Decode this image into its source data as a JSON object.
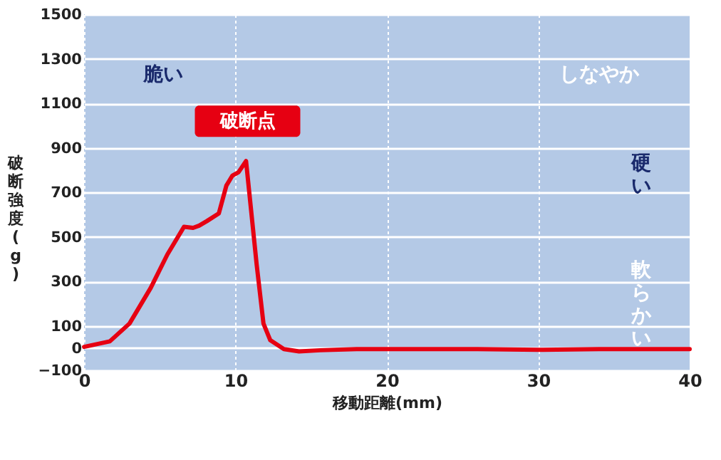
{
  "chart_data": {
    "type": "line",
    "xlabel": "移動距離(mm)",
    "ylabel": "破断強度(g)",
    "x": [
      0,
      1.7,
      3.0,
      4.4,
      5.5,
      6.6,
      7.2,
      7.6,
      8.1,
      8.9,
      9.4,
      9.8,
      10.2,
      10.7,
      11.4,
      11.85,
      12.3,
      13.2,
      14.2,
      15.6,
      18,
      22,
      26,
      30,
      34,
      38,
      40
    ],
    "series": [
      {
        "color": "#e60012",
        "values": [
          5,
          30,
          110,
          270,
          420,
          545,
          540,
          550,
          570,
          605,
          730,
          775,
          790,
          840,
          375,
          110,
          35,
          -5,
          -15,
          -10,
          -5,
          -5,
          -5,
          -8,
          -5,
          -5,
          -5
        ]
      }
    ],
    "xlim": [
      0,
      40
    ],
    "xticks": [
      0,
      10,
      20,
      30,
      40
    ],
    "ylim": [
      -100,
      1500
    ],
    "yticks": [
      -100,
      0,
      100,
      300,
      500,
      700,
      900,
      1100,
      1300,
      1500
    ],
    "grid": true,
    "line_style": "solid",
    "marker": "none",
    "annotations": [
      "脆い",
      "しなやか",
      "硬い",
      "軟らかい",
      {
        "text": "破断点",
        "x": 10.8,
        "y": 840
      }
    ]
  }
}
